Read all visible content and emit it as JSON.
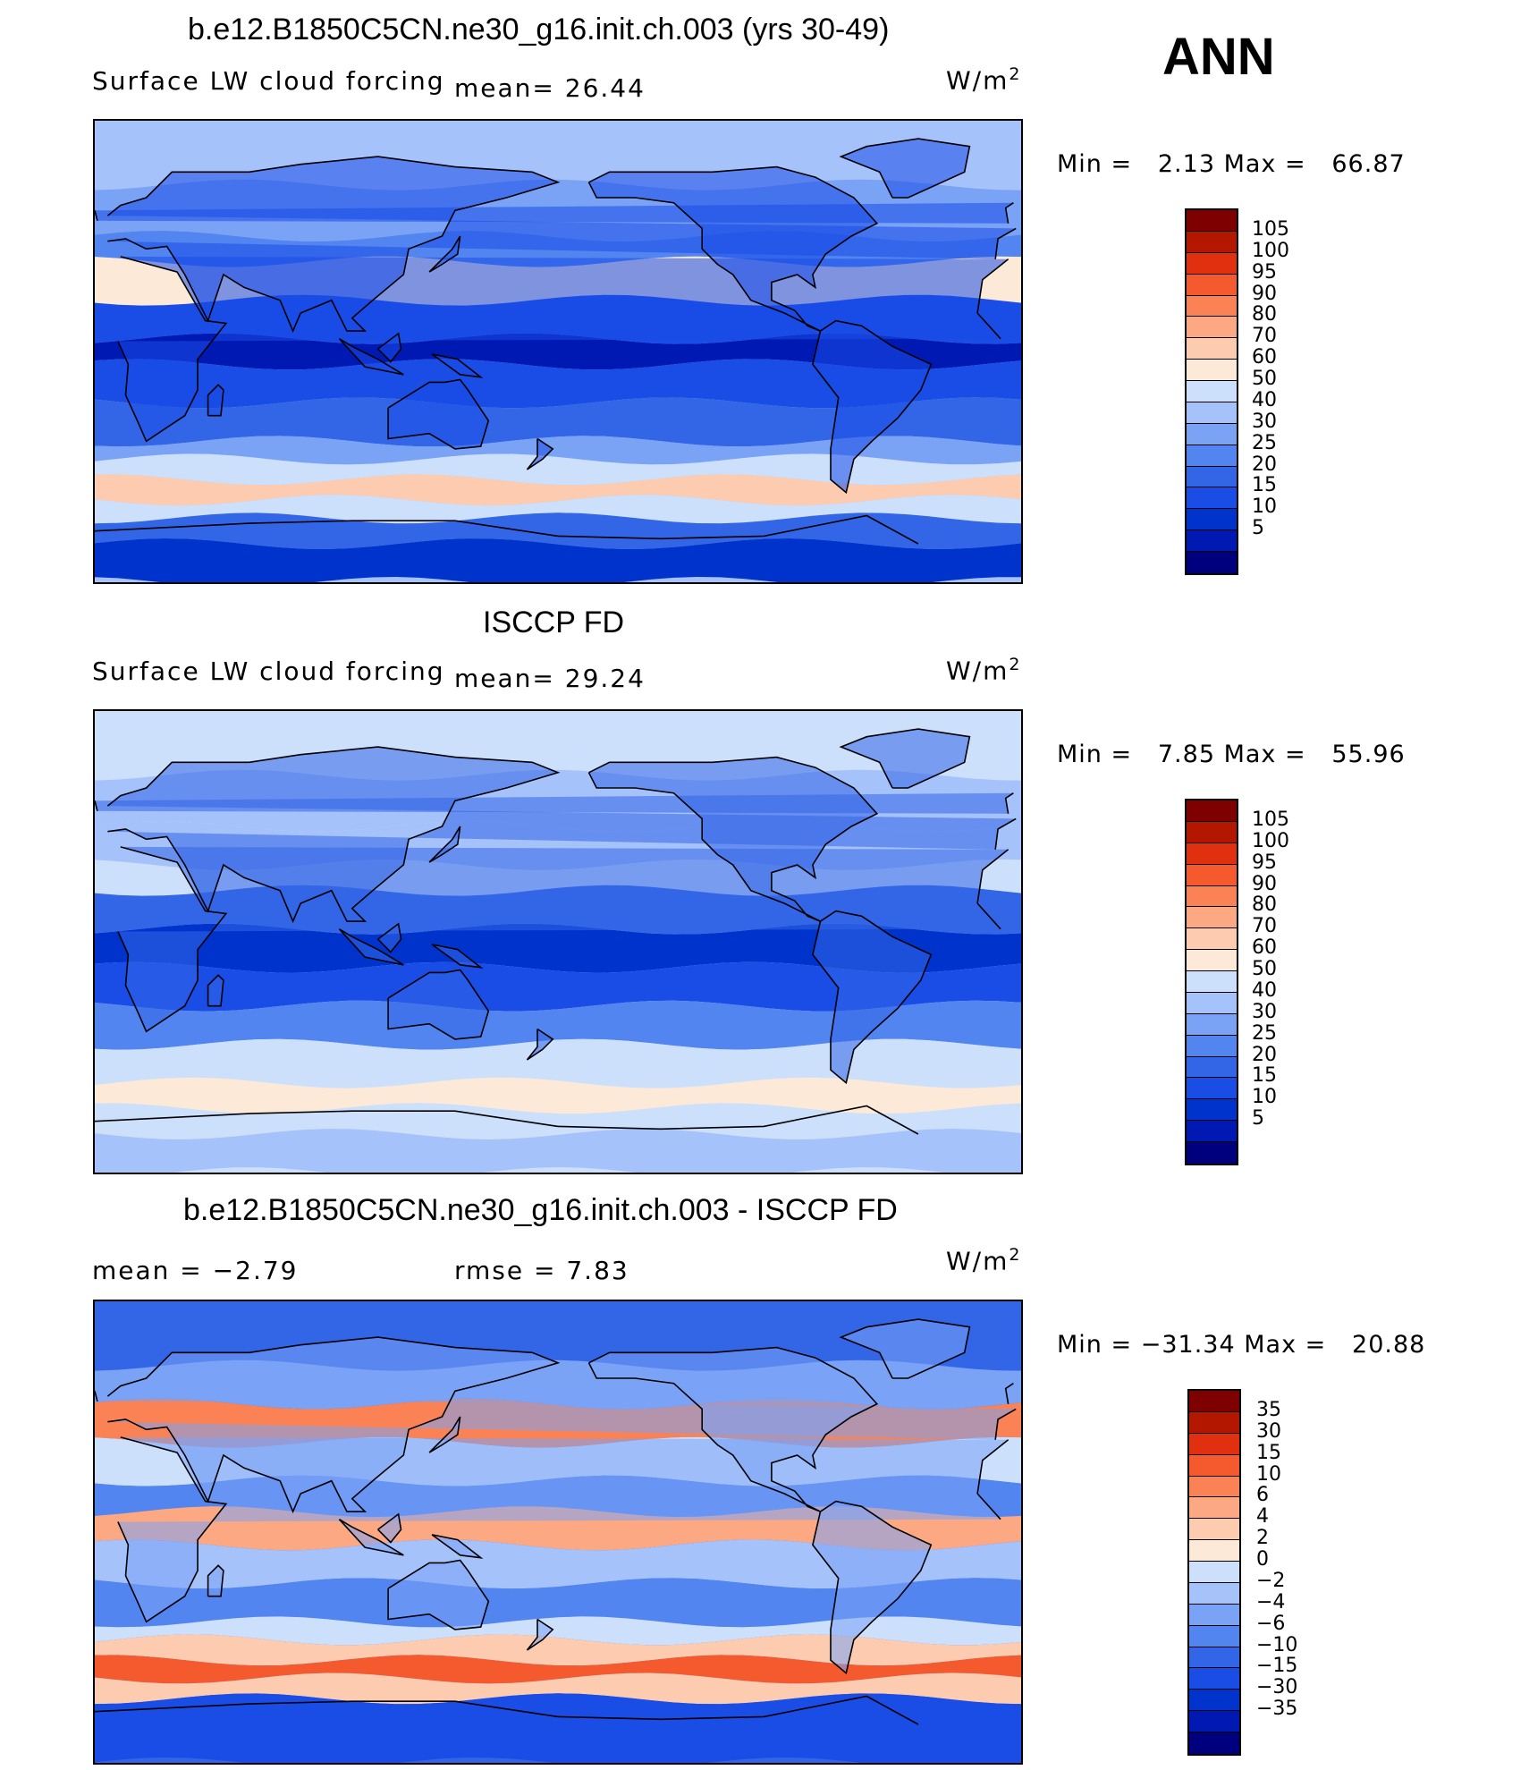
{
  "season": "ANN",
  "palette": {
    "main": [
      "#00007f",
      "#0019b3",
      "#0033cc",
      "#1a4de6",
      "#3366e6",
      "#5285f0",
      "#7aa3f5",
      "#a6c2fa",
      "#cce0fc",
      "#fde9d7",
      "#fdccb0",
      "#fca883",
      "#fb8255",
      "#f55a2e",
      "#e03010",
      "#b31700",
      "#7f0000"
    ],
    "diff": [
      "#00007f",
      "#0019b3",
      "#0033cc",
      "#1a4de6",
      "#3366e6",
      "#5285f0",
      "#7aa3f5",
      "#a6c2fa",
      "#cce0fc",
      "#fde9d7",
      "#fdccb0",
      "#fca883",
      "#fb8255",
      "#f55a2e",
      "#e03010",
      "#b31700",
      "#7f0000"
    ]
  },
  "panels": [
    {
      "title": "b.e12.B1850C5CN.ne30_g16.init.ch.003 (yrs 30-49)",
      "left_label": "Surface LW cloud forcing",
      "stat1": "mean=   26.44",
      "stat2": "",
      "unit": "W/m",
      "unit_sup": "2",
      "min_text": "Min  =",
      "min_val": "2.13",
      "max_text": "Max  =",
      "max_val": "66.87",
      "levels": [
        "105",
        "100",
        "95",
        "90",
        "80",
        "70",
        "60",
        "50",
        "40",
        "30",
        "25",
        "20",
        "15",
        "10",
        "5"
      ]
    },
    {
      "title": "ISCCP FD",
      "left_label": "Surface LW cloud forcing",
      "stat1": "mean=   29.24",
      "stat2": "",
      "unit": "W/m",
      "unit_sup": "2",
      "min_text": "Min  =",
      "min_val": "7.85",
      "max_text": "Max  =",
      "max_val": "55.96",
      "levels": [
        "105",
        "100",
        "95",
        "90",
        "80",
        "70",
        "60",
        "50",
        "40",
        "30",
        "25",
        "20",
        "15",
        "10",
        "5"
      ]
    },
    {
      "title": "b.e12.B1850C5CN.ne30_g16.init.ch.003 - ISCCP FD",
      "left_label": "mean  =   −2.79",
      "stat1": "",
      "stat2": "rmse  =    7.83",
      "unit": "W/m",
      "unit_sup": "2",
      "min_text": "Min  =",
      "min_val": "−31.34",
      "max_text": "Max  =",
      "max_val": "20.88",
      "levels": [
        "35",
        "30",
        "15",
        "10",
        "6",
        "4",
        "2",
        "0",
        "−2",
        "−4",
        "−6",
        "−10",
        "−15",
        "−30",
        "−35"
      ]
    }
  ],
  "map_fields": [
    {
      "bands": [
        {
          "lat": 80,
          "cls": 7
        },
        {
          "lat": 65,
          "cls": 6
        },
        {
          "lat": 45,
          "cls": 5
        },
        {
          "lat": 35,
          "cls": 9
        },
        {
          "lat": 20,
          "cls": 3
        },
        {
          "lat": 5,
          "cls": 1
        },
        {
          "lat": -5,
          "cls": 3
        },
        {
          "lat": -20,
          "cls": 4
        },
        {
          "lat": -35,
          "cls": 6
        },
        {
          "lat": -42,
          "cls": 8
        },
        {
          "lat": -50,
          "cls": 10
        },
        {
          "lat": -58,
          "cls": 8
        },
        {
          "lat": -65,
          "cls": 4
        },
        {
          "lat": -75,
          "cls": 2
        },
        {
          "lat": -90,
          "cls": 1
        }
      ]
    },
    {
      "bands": [
        {
          "lat": 80,
          "cls": 8
        },
        {
          "lat": 65,
          "cls": 7
        },
        {
          "lat": 45,
          "cls": 7
        },
        {
          "lat": 30,
          "cls": 8
        },
        {
          "lat": 20,
          "cls": 4
        },
        {
          "lat": 5,
          "cls": 2
        },
        {
          "lat": -10,
          "cls": 3
        },
        {
          "lat": -25,
          "cls": 5
        },
        {
          "lat": -40,
          "cls": 8
        },
        {
          "lat": -55,
          "cls": 9
        },
        {
          "lat": -65,
          "cls": 8
        },
        {
          "lat": -75,
          "cls": 7
        },
        {
          "lat": -90,
          "cls": 5
        }
      ]
    },
    {
      "bands": [
        {
          "lat": 80,
          "cls": 4
        },
        {
          "lat": 65,
          "cls": 6
        },
        {
          "lat": 50,
          "cls": 12
        },
        {
          "lat": 35,
          "cls": 8
        },
        {
          "lat": 20,
          "cls": 5
        },
        {
          "lat": 8,
          "cls": 11
        },
        {
          "lat": -5,
          "cls": 7
        },
        {
          "lat": -20,
          "cls": 5
        },
        {
          "lat": -35,
          "cls": 8
        },
        {
          "lat": -42,
          "cls": 10
        },
        {
          "lat": -50,
          "cls": 13
        },
        {
          "lat": -57,
          "cls": 10
        },
        {
          "lat": -65,
          "cls": 3
        },
        {
          "lat": -90,
          "cls": 2
        }
      ]
    }
  ]
}
